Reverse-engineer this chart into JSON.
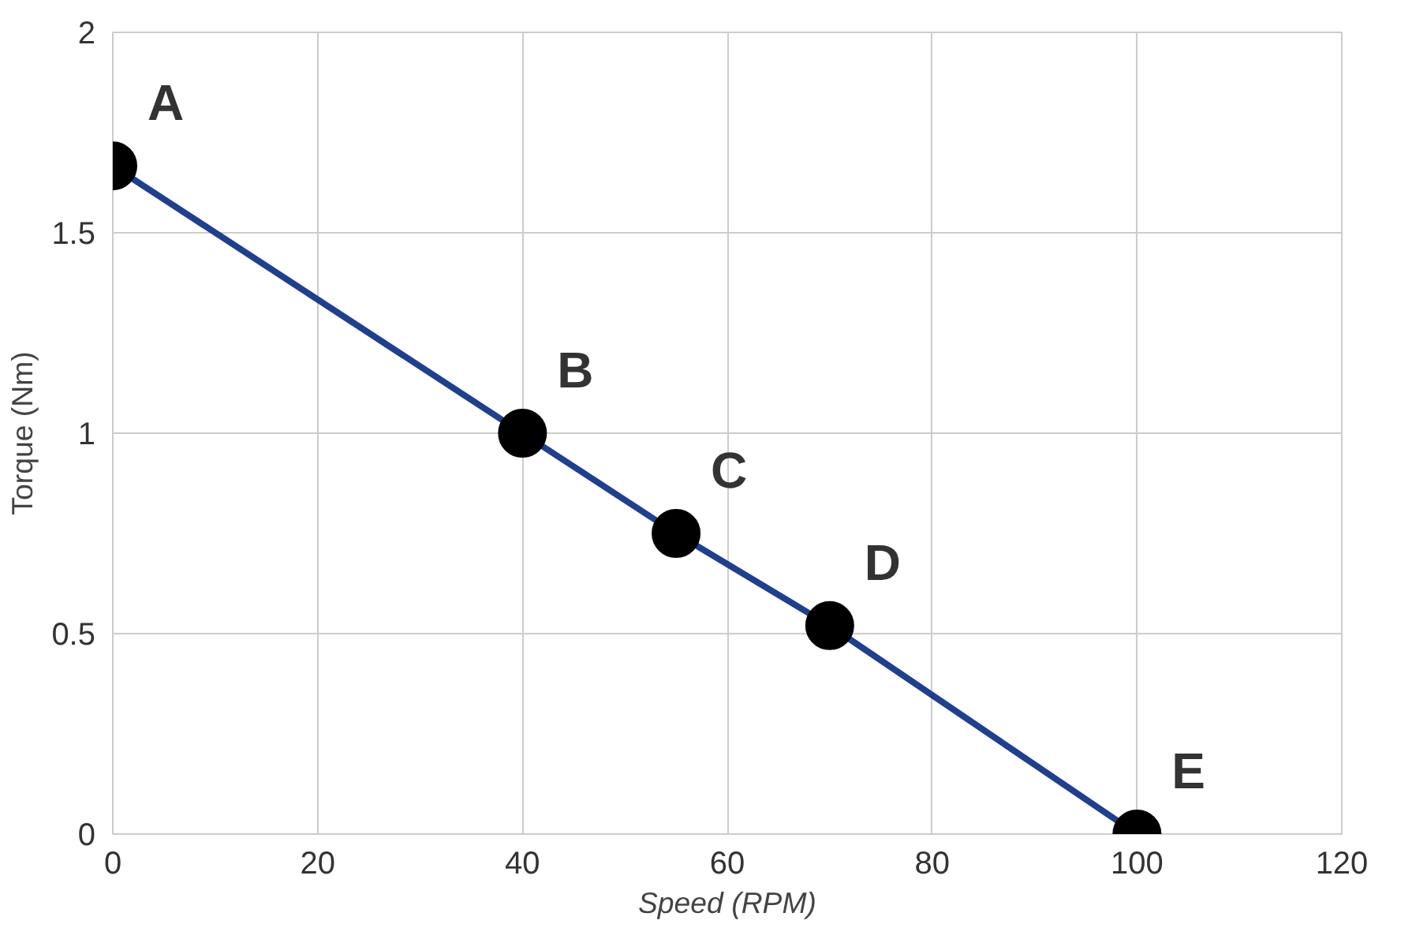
{
  "chart_data": {
    "type": "line",
    "xlabel": "Speed (RPM)",
    "ylabel": "Torque (Nm)",
    "x": [
      0,
      40,
      55,
      70,
      100
    ],
    "series": [
      {
        "color": "#1f3f8f",
        "colors": [
          "#000000",
          "#000000",
          "#000000",
          "#000000",
          "#000000"
        ],
        "values": [
          1.667,
          1.0,
          0.75,
          0.52,
          0
        ]
      }
    ],
    "xlim": [
      0,
      120
    ],
    "xticks": [
      0,
      20,
      40,
      60,
      80,
      100,
      120
    ],
    "ylim": [
      0,
      2
    ],
    "yticks": [
      0,
      0.5,
      1,
      1.5,
      2
    ],
    "grid": true,
    "marker": "circle",
    "line_style": "solid",
    "annotations": [
      {
        "text": "A",
        "x": 0,
        "y": 1.667
      },
      {
        "text": "B",
        "x": 40,
        "y": 1.0
      },
      {
        "text": "C",
        "x": 55,
        "y": 0.75
      },
      {
        "text": "D",
        "x": 70,
        "y": 0.52
      },
      {
        "text": "E",
        "x": 100,
        "y": 0
      }
    ]
  }
}
